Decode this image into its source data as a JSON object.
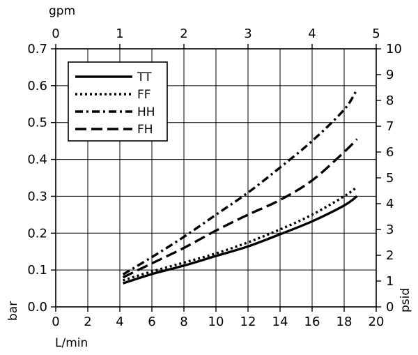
{
  "chart_data": {
    "type": "line",
    "xlabel": "L/min",
    "x2label": "gpm",
    "ylabel": "bar",
    "y2label": "psid",
    "xlim": [
      0,
      20
    ],
    "x2lim": [
      0,
      5
    ],
    "ylim": [
      0,
      0.7
    ],
    "y2lim": [
      0,
      10
    ],
    "xticks": [
      "0",
      "2",
      "4",
      "6",
      "8",
      "10",
      "12",
      "14",
      "16",
      "18",
      "20"
    ],
    "x2ticks": [
      "0",
      "1",
      "2",
      "3",
      "4",
      "5"
    ],
    "yticks": [
      "0.0",
      "0.1",
      "0.2",
      "0.3",
      "0.4",
      "0.5",
      "0.6",
      "0.7"
    ],
    "y2ticks": [
      "0",
      "1",
      "2",
      "3",
      "4",
      "5",
      "6",
      "7",
      "8",
      "9",
      "10"
    ],
    "grid": true,
    "legend_position": "top-left",
    "series": [
      {
        "name": "TT",
        "style": "solid",
        "x": [
          4.2,
          6,
          8,
          10,
          12,
          14,
          16,
          18,
          18.8
        ],
        "y": [
          0.064,
          0.089,
          0.112,
          0.138,
          0.164,
          0.197,
          0.232,
          0.275,
          0.3
        ]
      },
      {
        "name": "FF",
        "style": "dotted",
        "x": [
          4.2,
          6,
          8,
          10,
          12,
          14,
          16,
          18,
          18.8
        ],
        "y": [
          0.072,
          0.096,
          0.12,
          0.145,
          0.175,
          0.21,
          0.25,
          0.3,
          0.325
        ]
      },
      {
        "name": "HH",
        "style": "dashdot",
        "x": [
          4.2,
          6,
          8,
          10,
          12,
          14,
          16,
          18,
          18.8
        ],
        "y": [
          0.088,
          0.135,
          0.19,
          0.25,
          0.31,
          0.378,
          0.45,
          0.535,
          0.59
        ]
      },
      {
        "name": "FH",
        "style": "dashed",
        "x": [
          4.2,
          6,
          8,
          10,
          12,
          14,
          16,
          18,
          18.8
        ],
        "y": [
          0.08,
          0.118,
          0.16,
          0.207,
          0.25,
          0.29,
          0.343,
          0.42,
          0.455
        ]
      }
    ]
  }
}
